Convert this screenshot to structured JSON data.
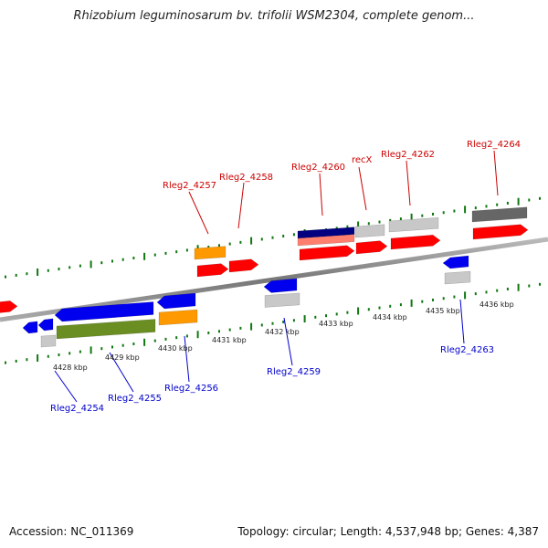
{
  "title": "Rhizobium leguminosarum bv. trifolii WSM2304, complete genom...",
  "footer": {
    "accession": "Accession: NC_011369",
    "summary": "Topology: circular; Length: 4,537,948 bp; Genes: 4,387"
  },
  "colors": {
    "red": "#ff0000",
    "blue": "#0000ee",
    "orange": "#ff9900",
    "olive": "#6b8e23",
    "light_gray": "#c8c8c8",
    "dark_gray": "#666666",
    "navy": "#000080",
    "salmon": "#ff7f6f",
    "tick_green": "#117711",
    "label_red": "#cc0000",
    "label_blue": "#0000cc"
  },
  "kbp_labels": [
    "4428 kbp",
    "4429 kbp",
    "4430 kbp",
    "4431 kbp",
    "4432 kbp",
    "4433 kbp",
    "4434 kbp",
    "4435 kbp",
    "4436 kbp"
  ],
  "forward_labels": [
    "Rleg2_4257",
    "Rleg2_4258",
    "Rleg2_4260",
    "recX",
    "Rleg2_4262",
    "Rleg2_4264"
  ],
  "reverse_labels": [
    "Rleg2_4254",
    "Rleg2_4255",
    "Rleg2_4256",
    "Rleg2_4259",
    "Rleg2_4263"
  ]
}
